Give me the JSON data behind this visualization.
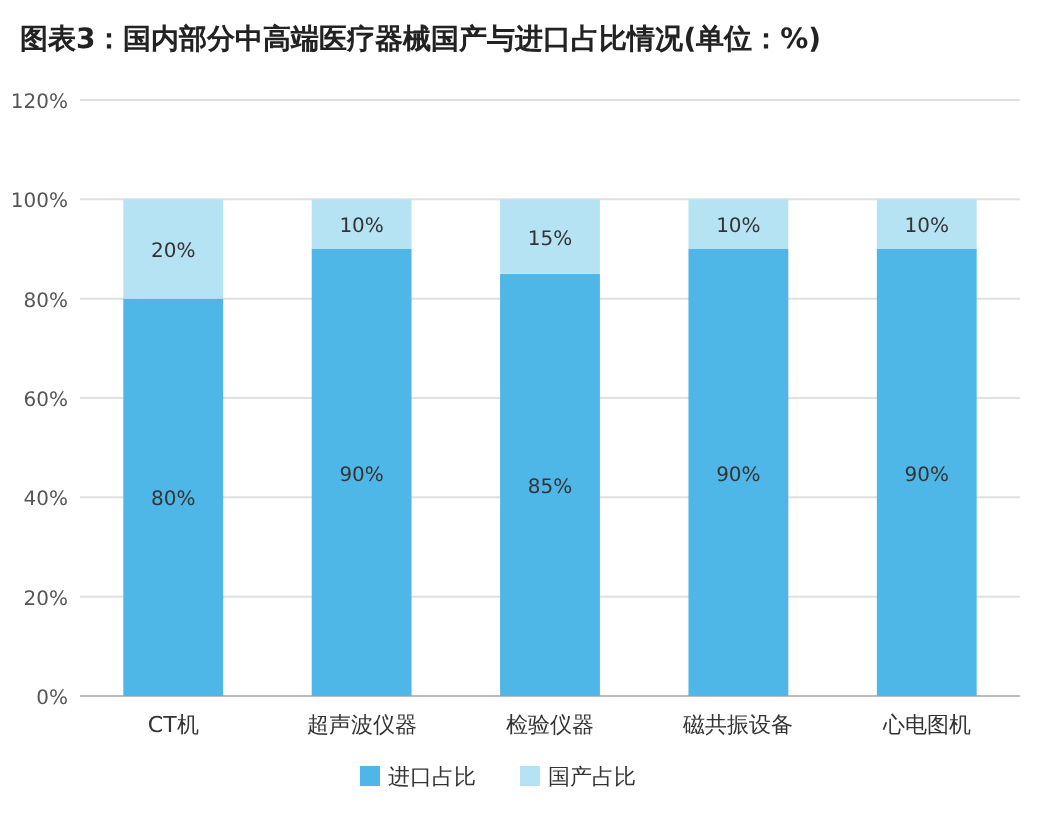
{
  "chart_data": {
    "type": "bar",
    "stacked": true,
    "title": "图表3：国内部分中高端医疗器械国产与进口占比情况(单位：%)",
    "categories": [
      "CT机",
      "超声波仪器",
      "检验仪器",
      "磁共振设备",
      "心电图机"
    ],
    "series": [
      {
        "name": "进口占比",
        "color": "#4fb7e7",
        "values": [
          80,
          90,
          85,
          90,
          90
        ],
        "value_labels": [
          "80%",
          "90%",
          "85%",
          "90%",
          "90%"
        ]
      },
      {
        "name": "国产占比",
        "color": "#b5e3f4",
        "values": [
          20,
          10,
          15,
          10,
          10
        ],
        "value_labels": [
          "20%",
          "10%",
          "15%",
          "10%",
          "10%"
        ]
      }
    ],
    "ylim": [
      0,
      120
    ],
    "yticks": [
      {
        "value": 0,
        "label": "0%"
      },
      {
        "value": 20,
        "label": "20%"
      },
      {
        "value": 40,
        "label": "40%"
      },
      {
        "value": 60,
        "label": "60%"
      },
      {
        "value": 80,
        "label": "80%"
      },
      {
        "value": 100,
        "label": "100%"
      },
      {
        "value": 120,
        "label": "120%"
      }
    ],
    "grid": "y",
    "legend": "bottom"
  }
}
